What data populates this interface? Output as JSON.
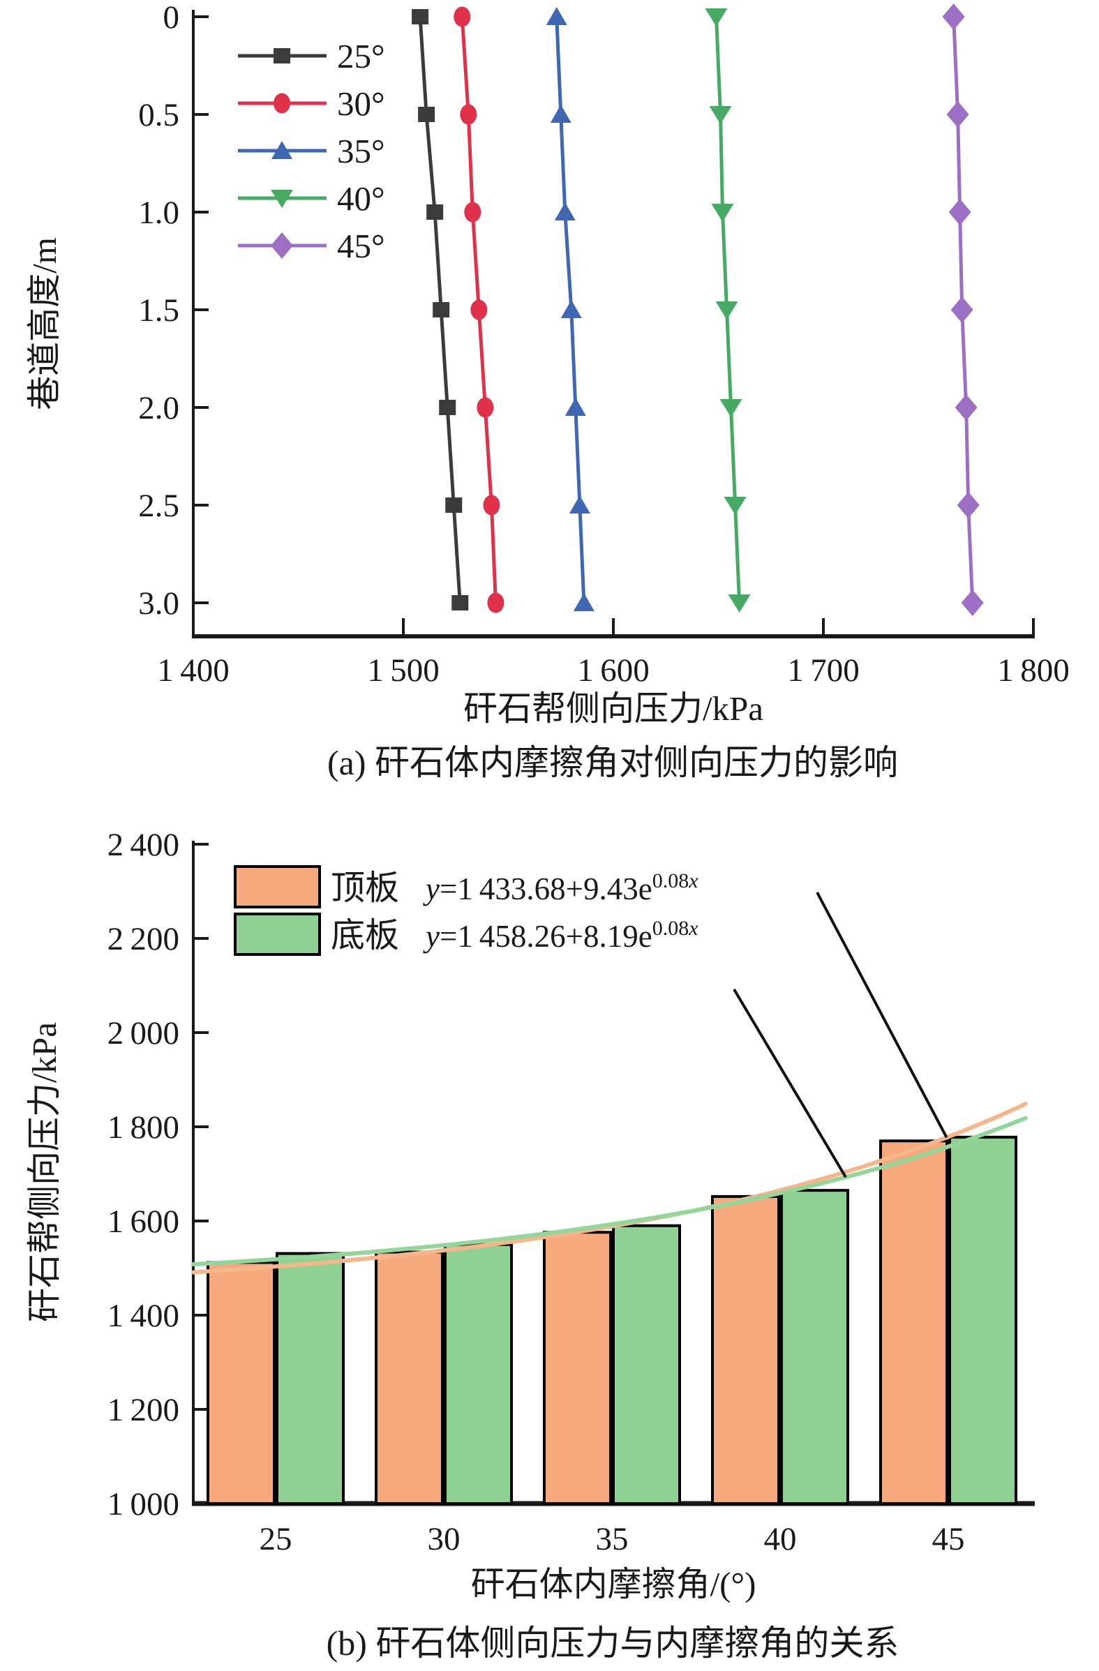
{
  "figure": {
    "background": "#ffffff",
    "ink_color": "#1a1a1a"
  },
  "caption_a": "(a) 矸石体内摩擦角对侧向压力的影响",
  "caption_b": "(b) 矸石体侧向压力与内摩擦角的关系",
  "chart_data": [
    {
      "id": "a",
      "type": "line",
      "title": "",
      "xlabel": "矸石帮侧向压力/kPa",
      "ylabel": "巷道高度/m",
      "xlim": [
        1400,
        1800
      ],
      "ylim": [
        0,
        3
      ],
      "y_axis_inverted": true,
      "grid": false,
      "legend_position": "upper-left",
      "x_ticks": [
        {
          "v": 1400,
          "label": "1 400"
        },
        {
          "v": 1500,
          "label": "1 500"
        },
        {
          "v": 1600,
          "label": "1 600"
        },
        {
          "v": 1700,
          "label": "1 700"
        },
        {
          "v": 1800,
          "label": "1 800"
        }
      ],
      "y_ticks": [
        {
          "v": 0.0,
          "label": "0"
        },
        {
          "v": 0.5,
          "label": "0.5"
        },
        {
          "v": 1.0,
          "label": "1.0"
        },
        {
          "v": 1.5,
          "label": "1.5"
        },
        {
          "v": 2.0,
          "label": "2.0"
        },
        {
          "v": 2.5,
          "label": "2.5"
        },
        {
          "v": 3.0,
          "label": "3.0"
        }
      ],
      "heights_m": [
        0,
        0.5,
        1.0,
        1.5,
        2.0,
        2.5,
        3.0
      ],
      "series": [
        {
          "name": "25°",
          "marker": "square",
          "color": "#3b3b3b",
          "values": [
            1508,
            1511,
            1515,
            1518,
            1521,
            1524,
            1527
          ]
        },
        {
          "name": "30°",
          "marker": "circle",
          "color": "#e0314b",
          "values": [
            1528,
            1531,
            1533,
            1536,
            1539,
            1542,
            1544
          ]
        },
        {
          "name": "35°",
          "marker": "triangle-up",
          "color": "#4067b1",
          "values": [
            1573,
            1575,
            1577,
            1580,
            1582,
            1584,
            1586
          ]
        },
        {
          "name": "40°",
          "marker": "triangle-down",
          "color": "#46a964",
          "values": [
            1649,
            1651,
            1652,
            1654,
            1656,
            1658,
            1660
          ]
        },
        {
          "name": "45°",
          "marker": "diamond",
          "color": "#9c6fc5",
          "values": [
            1762,
            1764,
            1765,
            1766,
            1768,
            1769,
            1771
          ]
        }
      ]
    },
    {
      "id": "b",
      "type": "bar",
      "title": "",
      "xlabel": "矸石体内摩擦角/(°)",
      "ylabel": "矸石帮侧向压力/kPa",
      "categories": [
        25,
        30,
        35,
        40,
        45
      ],
      "ylim": [
        1000,
        2400
      ],
      "grid": false,
      "legend_position": "upper-left",
      "y_ticks": [
        {
          "v": 1000,
          "label": "1 000"
        },
        {
          "v": 1200,
          "label": "1 200"
        },
        {
          "v": 1400,
          "label": "1 400"
        },
        {
          "v": 1600,
          "label": "1 600"
        },
        {
          "v": 1800,
          "label": "1 800"
        },
        {
          "v": 2000,
          "label": "2 000"
        },
        {
          "v": 2200,
          "label": "2 200"
        },
        {
          "v": 2400,
          "label": "2 400"
        }
      ],
      "series": [
        {
          "name": "顶板",
          "color": "#f5a97d",
          "values": [
            1512,
            1534,
            1576,
            1652,
            1770
          ]
        },
        {
          "name": "底板",
          "color": "#8ed193",
          "values": [
            1531,
            1550,
            1590,
            1665,
            1778
          ]
        }
      ],
      "bar_outline_color": "#000000",
      "fit_curves": [
        {
          "for": "顶板",
          "color": "#f6b68c",
          "a": 1433.68,
          "b": 9.43,
          "k": 0.08,
          "equation": {
            "lhs": "y",
            "body": "=1 433.68+9.43e",
            "sup_num": "0.08",
            "sup_var": "x"
          }
        },
        {
          "for": "底板",
          "color": "#93d69a",
          "a": 1458.26,
          "b": 8.19,
          "k": 0.08,
          "equation": {
            "lhs": "y",
            "body": "=1 458.26+8.19e",
            "sup_num": "0.08",
            "sup_var": "x"
          }
        }
      ]
    }
  ]
}
